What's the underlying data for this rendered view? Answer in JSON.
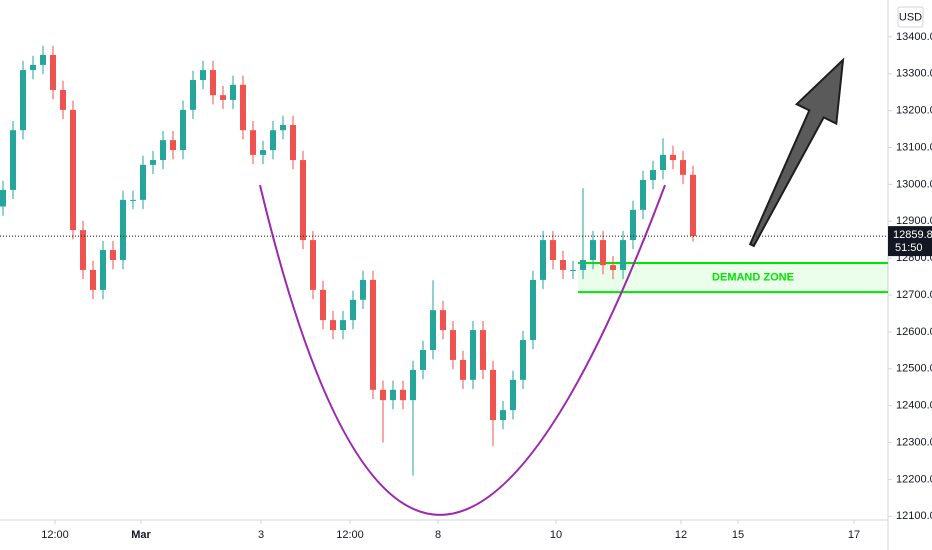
{
  "chart_data": {
    "type": "candlestick",
    "currency": "USD",
    "countdown": "51:50",
    "up_color": "#26a69a",
    "down_color": "#ef5350",
    "open": [
      12940,
      12985,
      13147,
      13310,
      13324,
      13351,
      13256,
      13202,
      12876,
      12768,
      12714,
      12822,
      12795,
      12958,
      12958,
      13053,
      13066,
      13120,
      13093,
      13202,
      13283,
      13310,
      13242,
      13229,
      13270,
      13147,
      13080,
      13093,
      13147,
      13161,
      13066,
      12849,
      12714,
      12632,
      12605,
      12632,
      12687,
      12741,
      12443,
      12415,
      12443,
      12415,
      12497,
      12551,
      12659,
      12605,
      12524,
      12470,
      12605,
      12497,
      12361,
      12388,
      12470,
      12578,
      12741,
      12849,
      12795,
      12768,
      12768,
      12795,
      12849,
      12781,
      12768,
      12849,
      12931,
      13012,
      13039,
      13080,
      13066,
      13026
    ],
    "high": [
      13010,
      13172,
      13335,
      13349,
      13376,
      13376,
      13281,
      13227,
      12901,
      12793,
      12847,
      12847,
      12983,
      12983,
      13078,
      13091,
      13145,
      13145,
      13227,
      13308,
      13335,
      13335,
      13267,
      13295,
      13295,
      13172,
      13118,
      13172,
      13186,
      13186,
      13091,
      12874,
      12739,
      12657,
      12657,
      12712,
      12766,
      12766,
      12468,
      12468,
      12468,
      12522,
      12576,
      12740,
      12684,
      12630,
      12549,
      12630,
      12630,
      12522,
      12413,
      12495,
      12603,
      12766,
      12874,
      12874,
      12820,
      12793,
      12990,
      12874,
      12874,
      12806,
      12874,
      12956,
      13037,
      13064,
      13125,
      13105,
      13091,
      13051
    ],
    "low": [
      12915,
      12960,
      13122,
      13285,
      13299,
      13231,
      13177,
      12851,
      12743,
      12689,
      12689,
      12770,
      12770,
      12933,
      12933,
      13028,
      13041,
      13068,
      13068,
      13177,
      13258,
      13217,
      13204,
      13204,
      13122,
      13055,
      13055,
      13068,
      13122,
      13041,
      12824,
      12689,
      12607,
      12580,
      12580,
      12607,
      12662,
      12418,
      12300,
      12390,
      12390,
      12210,
      12472,
      12526,
      12580,
      12499,
      12445,
      12445,
      12472,
      12290,
      12336,
      12363,
      12445,
      12553,
      12716,
      12770,
      12743,
      12743,
      12743,
      12770,
      12756,
      12743,
      12743,
      12824,
      12906,
      12987,
      13014,
      13041,
      13001,
      12845
    ],
    "close": [
      12985,
      13147,
      13310,
      13324,
      13351,
      13256,
      13202,
      12876,
      12768,
      12714,
      12822,
      12795,
      12958,
      12958,
      13053,
      13066,
      13120,
      13093,
      13202,
      13283,
      13310,
      13242,
      13229,
      13270,
      13147,
      13080,
      13093,
      13147,
      13161,
      13066,
      12849,
      12714,
      12632,
      12605,
      12632,
      12687,
      12741,
      12443,
      12415,
      12443,
      12415,
      12497,
      12551,
      12659,
      12605,
      12524,
      12470,
      12605,
      12497,
      12361,
      12388,
      12470,
      12578,
      12741,
      12849,
      12795,
      12768,
      12768,
      12795,
      12849,
      12781,
      12768,
      12849,
      12931,
      13012,
      13039,
      13080,
      13066,
      13026,
      12859.8
    ],
    "xlim": [
      -0.3,
      88.5
    ],
    "xticks": [
      {
        "value": 5.2,
        "label": "12:00"
      },
      {
        "value": 13.8,
        "label": "Mar"
      },
      {
        "value": 25.8,
        "label": "3"
      },
      {
        "value": 34.7,
        "label": "12:00"
      },
      {
        "value": 43.5,
        "label": "8"
      },
      {
        "value": 55.3,
        "label": "10"
      },
      {
        "value": 67.8,
        "label": "12"
      },
      {
        "value": 73.5,
        "label": "15"
      },
      {
        "value": 85.1,
        "label": "17"
      }
    ],
    "ylim": [
      12090,
      13500
    ],
    "yticks": [
      {
        "value": 12100,
        "label": "12100.0"
      },
      {
        "value": 12200,
        "label": "12200.0"
      },
      {
        "value": 12300,
        "label": "12300.0"
      },
      {
        "value": 12400,
        "label": "12400.0"
      },
      {
        "value": 12500,
        "label": "12500.0"
      },
      {
        "value": 12600,
        "label": "12600.0"
      },
      {
        "value": 12700,
        "label": "12700.0"
      },
      {
        "value": 12800,
        "label": "12800.0"
      },
      {
        "value": 12900,
        "label": "12900.0"
      },
      {
        "value": 13000,
        "label": "13000.0"
      },
      {
        "value": 13100,
        "label": "13100.0"
      },
      {
        "value": 13200,
        "label": "13200.0"
      },
      {
        "value": 13300,
        "label": "13300.0"
      },
      {
        "value": 13400,
        "label": "13400.0"
      }
    ],
    "demand_zone": {
      "label": "DEMAND ZONE",
      "low": 12708,
      "high": 12787,
      "x_start": 57.5,
      "color": "#00e600"
    },
    "cup": {
      "x": [
        25.7,
        43.7,
        66.2
      ],
      "y": [
        12998,
        12104,
        12998
      ],
      "color": "#9c27b0"
    }
  }
}
